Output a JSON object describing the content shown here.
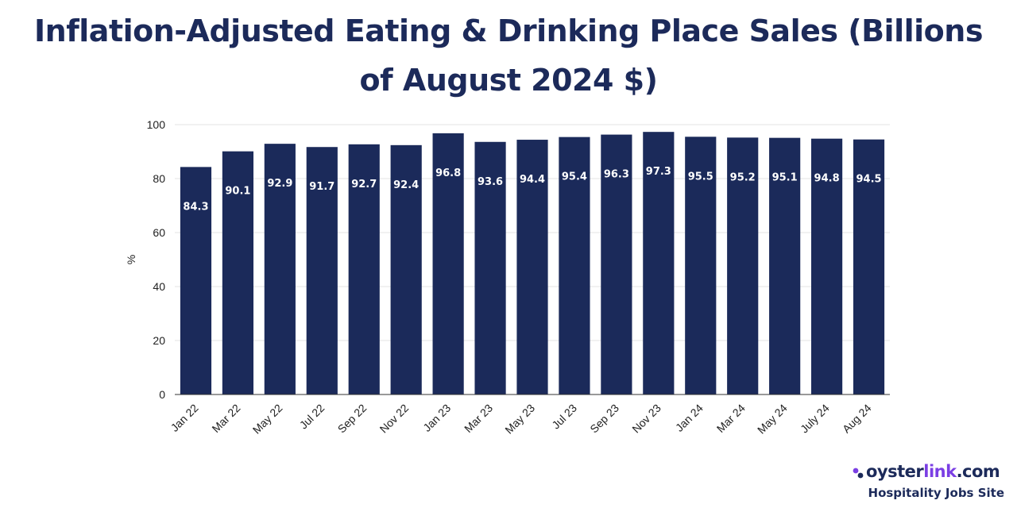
{
  "colors": {
    "bar": "#1b2a5a",
    "title": "#1c2a5a",
    "grid": "#e3e3e3",
    "label": "#ffffff",
    "brand_accent": "#7b3fe4"
  },
  "logo": {
    "word_part1": "oyster",
    "word_part2": "link",
    "word_part3": ".com",
    "tagline": "Hospitality Jobs Site"
  },
  "chart_data": {
    "type": "bar",
    "title": "Inflation-Adjusted Eating & Drinking Place Sales (Billions of August 2024 $)",
    "xlabel": "",
    "ylabel": "%",
    "ylim": [
      0,
      100
    ],
    "yticks": [
      0,
      20,
      40,
      60,
      80,
      100
    ],
    "grid": true,
    "categories": [
      "Jan 22",
      "Mar 22",
      "May 22",
      "Jul 22",
      "Sep 22",
      "Nov 22",
      "Jan 23",
      "Mar 23",
      "May 23",
      "Jul 23",
      "Sep 23",
      "Nov 23",
      "Jan 24",
      "Mar 24",
      "May 24",
      "July 24",
      "Aug 24"
    ],
    "values": [
      84.3,
      90.1,
      92.9,
      91.7,
      92.7,
      92.4,
      96.8,
      93.6,
      94.4,
      95.4,
      96.3,
      97.3,
      95.5,
      95.2,
      95.1,
      94.8,
      94.5
    ],
    "data_labels": [
      "84.3",
      "90.1",
      "92.9",
      "91.7",
      "92.7",
      "92.4",
      "96.8",
      "93.6",
      "94.4",
      "95.4",
      "96.3",
      "97.3",
      "95.5",
      "95.2",
      "95.1",
      "94.8",
      "94.5"
    ]
  }
}
